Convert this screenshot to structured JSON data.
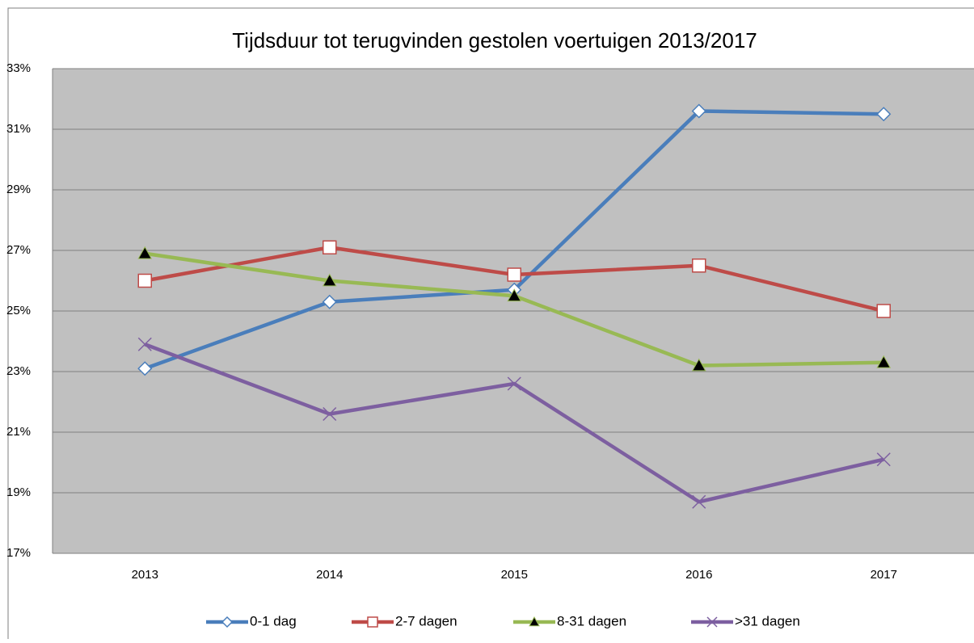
{
  "chart_data": {
    "type": "line",
    "title": "Tijdsduur tot terugvinden gestolen voertuigen 2013/2017",
    "categories": [
      "2013",
      "2014",
      "2015",
      "2016",
      "2017"
    ],
    "series": [
      {
        "name": "0-1 dag",
        "color": "#4a7ebb",
        "marker": "diamond",
        "values": [
          23.1,
          25.3,
          25.7,
          31.6,
          31.5
        ]
      },
      {
        "name": "2-7 dagen",
        "color": "#be4b48",
        "marker": "square",
        "values": [
          26.0,
          27.1,
          26.2,
          26.5,
          25.0
        ]
      },
      {
        "name": "8-31 dagen",
        "color": "#98b954",
        "marker": "triangle",
        "values": [
          26.9,
          26.0,
          25.5,
          23.2,
          23.3
        ]
      },
      {
        "name": ">31 dagen",
        "color": "#7d5fa0",
        "marker": "x",
        "values": [
          23.9,
          21.6,
          22.6,
          18.7,
          20.1
        ]
      }
    ],
    "ylim": [
      17,
      33
    ],
    "yticks": [
      {
        "value": 17,
        "label": "17%"
      },
      {
        "value": 19,
        "label": "19%"
      },
      {
        "value": 21,
        "label": "21%"
      },
      {
        "value": 23,
        "label": "23%"
      },
      {
        "value": 25,
        "label": "25%"
      },
      {
        "value": 27,
        "label": "27%"
      },
      {
        "value": 29,
        "label": "29%"
      },
      {
        "value": 31,
        "label": "31%"
      },
      {
        "value": 33,
        "label": "33%"
      }
    ],
    "grid": true,
    "legend": "bottom"
  }
}
